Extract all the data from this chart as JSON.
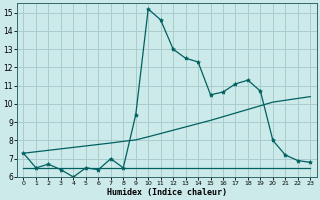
{
  "xlabel": "Humidex (Indice chaleur)",
  "xlim": [
    -0.5,
    23.5
  ],
  "ylim": [
    6,
    15.5
  ],
  "xticks": [
    0,
    1,
    2,
    3,
    4,
    5,
    6,
    7,
    8,
    9,
    10,
    11,
    12,
    13,
    14,
    15,
    16,
    17,
    18,
    19,
    20,
    21,
    22,
    23
  ],
  "yticks": [
    6,
    7,
    8,
    9,
    10,
    11,
    12,
    13,
    14,
    15
  ],
  "bg_color": "#cceaea",
  "grid_color": "#aacccc",
  "line_color": "#006060",
  "line1_x": [
    0,
    1,
    2,
    3,
    4,
    5,
    6,
    7,
    8,
    9,
    10,
    11,
    12,
    13,
    14,
    15,
    16,
    17,
    18,
    19,
    20,
    21,
    22,
    23
  ],
  "line1_y": [
    7.3,
    6.5,
    6.7,
    6.4,
    6.0,
    6.5,
    6.4,
    7.0,
    6.5,
    9.4,
    15.2,
    14.6,
    13.0,
    12.5,
    12.3,
    10.5,
    10.65,
    11.1,
    11.3,
    10.7,
    8.0,
    7.2,
    6.9,
    6.8
  ],
  "line2_x": [
    0,
    1,
    2,
    3,
    4,
    5,
    6,
    7,
    8,
    9,
    10,
    11,
    12,
    13,
    14,
    15,
    16,
    17,
    18,
    19,
    20,
    21,
    22,
    23
  ],
  "line2_y": [
    7.3,
    7.38,
    7.46,
    7.54,
    7.62,
    7.7,
    7.78,
    7.86,
    7.95,
    8.03,
    8.2,
    8.38,
    8.56,
    8.74,
    8.92,
    9.1,
    9.3,
    9.5,
    9.7,
    9.9,
    10.1,
    10.2,
    10.3,
    10.4
  ],
  "line3_x": [
    0,
    1,
    2,
    3,
    4,
    5,
    6,
    7,
    8,
    9,
    10,
    11,
    12,
    13,
    14,
    15,
    16,
    17,
    18,
    19,
    20,
    21,
    22,
    23
  ],
  "line3_y": [
    6.5,
    6.5,
    6.5,
    6.5,
    6.5,
    6.5,
    6.5,
    6.5,
    6.5,
    6.5,
    6.5,
    6.5,
    6.5,
    6.5,
    6.5,
    6.5,
    6.5,
    6.5,
    6.5,
    6.5,
    6.5,
    6.5,
    6.5,
    6.5
  ]
}
